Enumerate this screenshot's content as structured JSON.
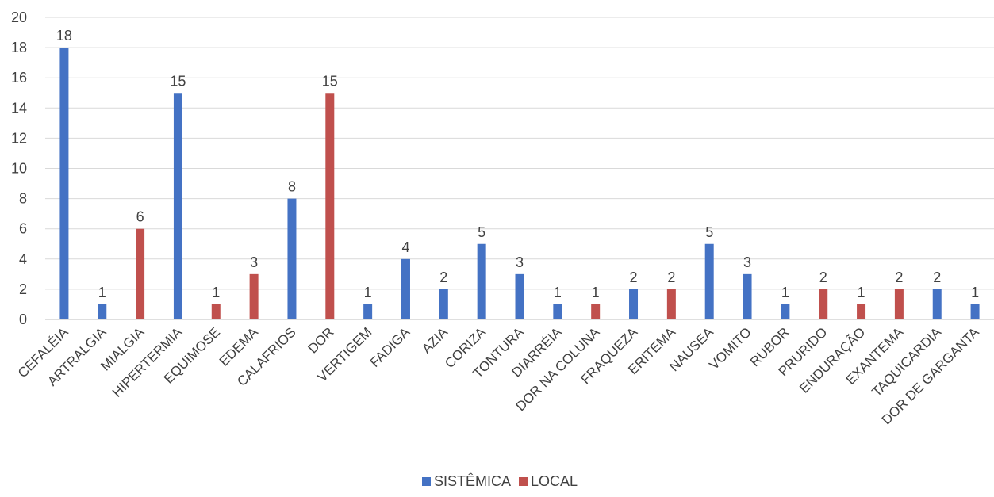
{
  "chart_data": {
    "type": "bar",
    "title": "",
    "xlabel": "",
    "ylabel": "",
    "ylim": [
      0,
      20
    ],
    "yticks": [
      "0",
      "2",
      "4",
      "6",
      "8",
      "10",
      "12",
      "14",
      "16",
      "18",
      "20"
    ],
    "grid": true,
    "legend_position": "bottom",
    "categories": [
      "CEFALÉIA",
      "ARTRALGIA",
      "MIALGIA",
      "HIPERTERMIA",
      "EQUIMOSE",
      "EDEMA",
      "CALAFRIOS",
      "DOR",
      "VERTIGEM",
      "FADIGA",
      "AZIA",
      "CORIZA",
      "TONTURA",
      "DIARRÉIA",
      "DOR NA COLUNA",
      "FRAQUEZA",
      "ERITEMA",
      "NAUSEA",
      "VOMITO",
      "RUBOR",
      "PRURIDO",
      "ENDURAÇÃO",
      "EXANTEMA",
      "TAQUICARDIA",
      "DOR DE GARGANTA"
    ],
    "series": [
      {
        "name": "SISTÊMICA",
        "color": "#4472c4",
        "values": [
          18,
          1,
          null,
          15,
          null,
          null,
          8,
          null,
          1,
          4,
          2,
          5,
          3,
          1,
          null,
          2,
          null,
          5,
          3,
          1,
          null,
          null,
          null,
          2,
          1
        ]
      },
      {
        "name": "LOCAL",
        "color": "#c0504d",
        "values": [
          null,
          null,
          6,
          null,
          1,
          3,
          null,
          15,
          null,
          null,
          null,
          null,
          null,
          null,
          1,
          null,
          2,
          null,
          null,
          null,
          2,
          1,
          2,
          null,
          null
        ]
      }
    ]
  }
}
